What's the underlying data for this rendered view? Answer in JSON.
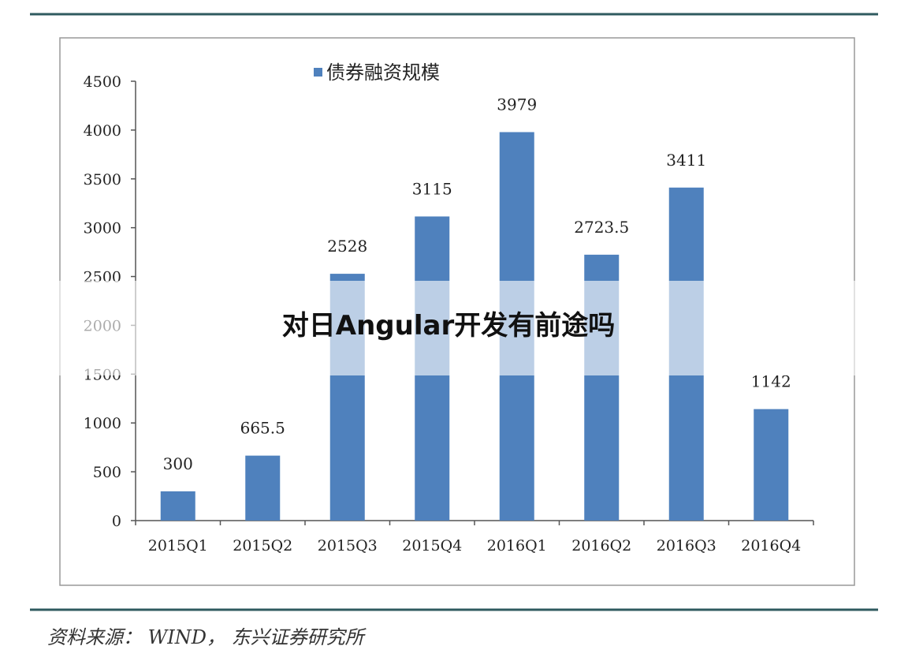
{
  "chart_data": {
    "type": "bar",
    "categories": [
      "2015Q1",
      "2015Q2",
      "2015Q3",
      "2015Q4",
      "2016Q1",
      "2016Q2",
      "2016Q3",
      "2016Q4"
    ],
    "series": [
      {
        "name": "债券融资规模",
        "color": "#4f81bd",
        "values": [
          300,
          665.5,
          2528,
          3115,
          3979,
          2723.5,
          3411,
          1142
        ]
      }
    ],
    "ylim": [
      0,
      4500
    ],
    "yticks": [
      0,
      500,
      1000,
      1500,
      2000,
      2500,
      3000,
      3500,
      4000,
      4500
    ],
    "grid": false,
    "legend": "top",
    "data_labels": true
  },
  "overlay_title": "对日Angular开发有前途吗",
  "source": "资料来源： WIND， 东兴证券研究所"
}
